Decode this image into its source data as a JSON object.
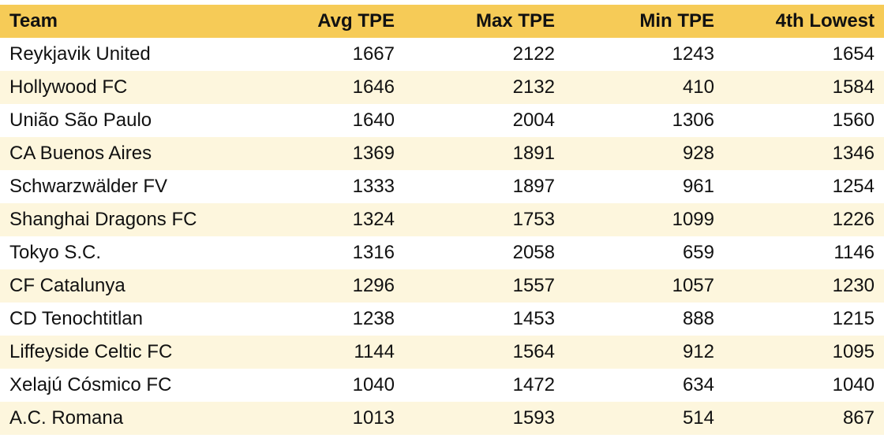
{
  "table": {
    "header": [
      "Team",
      "Avg TPE",
      "Max TPE",
      "Min TPE",
      "4th Lowest"
    ],
    "rows": [
      [
        "Reykjavik United",
        1667,
        2122,
        1243,
        1654
      ],
      [
        "Hollywood FC",
        1646,
        2132,
        410,
        1584
      ],
      [
        "União São Paulo",
        1640,
        2004,
        1306,
        1560
      ],
      [
        "CA Buenos Aires",
        1369,
        1891,
        928,
        1346
      ],
      [
        "Schwarzwälder FV",
        1333,
        1897,
        961,
        1254
      ],
      [
        "Shanghai Dragons FC",
        1324,
        1753,
        1099,
        1226
      ],
      [
        "Tokyo S.C.",
        1316,
        2058,
        659,
        1146
      ],
      [
        "CF Catalunya",
        1296,
        1557,
        1057,
        1230
      ],
      [
        "CD Tenochtitlan",
        1238,
        1453,
        888,
        1215
      ],
      [
        "Liffeyside Celtic FC",
        1144,
        1564,
        912,
        1095
      ],
      [
        "Xelajú Cósmico FC",
        1040,
        1472,
        634,
        1040
      ],
      [
        "A.C. Romana",
        1013,
        1593,
        514,
        867
      ]
    ]
  }
}
